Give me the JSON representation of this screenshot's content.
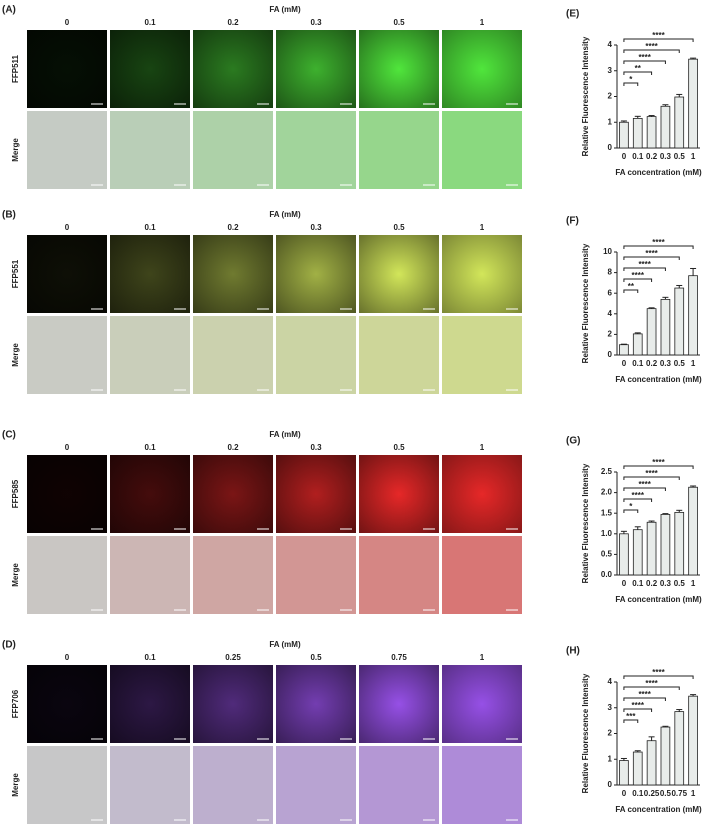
{
  "panels": [
    {
      "label": "(A)",
      "header": "FA (mM)",
      "concentrations": [
        "0",
        "0.1",
        "0.2",
        "0.3",
        "0.5",
        "1"
      ],
      "rows": [
        "FFP511",
        "Merge"
      ]
    },
    {
      "label": "(B)",
      "header": "FA (mM)",
      "concentrations": [
        "0",
        "0.1",
        "0.2",
        "0.3",
        "0.5",
        "1"
      ],
      "rows": [
        "FFP551",
        "Merge"
      ]
    },
    {
      "label": "(C)",
      "header": "FA (mM)",
      "concentrations": [
        "0",
        "0.1",
        "0.2",
        "0.3",
        "0.5",
        "1"
      ],
      "rows": [
        "FFP585",
        "Merge"
      ]
    },
    {
      "label": "(D)",
      "header": "FA (mM)",
      "concentrations": [
        "0",
        "0.1",
        "0.25",
        "0.5",
        "0.75",
        "1"
      ],
      "rows": [
        "FFP706",
        "Merge"
      ]
    }
  ],
  "chart_data": [
    {
      "type": "bar",
      "label": "(E)",
      "ylabel": "Relative Fluorescence Intensity",
      "xlabel": "FA concentration (mM)",
      "categories": [
        "0",
        "0.1",
        "0.2",
        "0.3",
        "0.5",
        "1"
      ],
      "values": [
        1.0,
        1.15,
        1.22,
        1.62,
        1.98,
        3.45
      ],
      "errors": [
        0.05,
        0.08,
        0.04,
        0.06,
        0.1,
        0.04
      ],
      "significance": [
        null,
        "*",
        "**",
        "****",
        "****",
        "****"
      ],
      "ylim": [
        0,
        4
      ],
      "yticks": [
        0,
        1,
        2,
        3,
        4
      ],
      "color": "#e8ecea"
    },
    {
      "type": "bar",
      "label": "(F)",
      "ylabel": "Relative Fluorescence Intensity",
      "xlabel": "FA concentration (mM)",
      "categories": [
        "0",
        "0.1",
        "0.2",
        "0.3",
        "0.5",
        "1"
      ],
      "values": [
        1.0,
        2.05,
        4.5,
        5.4,
        6.5,
        7.7
      ],
      "errors": [
        0.05,
        0.1,
        0.08,
        0.2,
        0.25,
        0.7
      ],
      "significance": [
        null,
        "**",
        "****",
        "****",
        "****",
        "****"
      ],
      "ylim": [
        0,
        10
      ],
      "yticks": [
        0,
        2,
        4,
        6,
        8,
        10
      ],
      "color": "#e8ecea"
    },
    {
      "type": "bar",
      "label": "(G)",
      "ylabel": "Relative Fluorescence Intensity",
      "xlabel": "FA concentration (mM)",
      "categories": [
        "0",
        "0.1",
        "0.2",
        "0.3",
        "0.5",
        "1"
      ],
      "values": [
        1.0,
        1.1,
        1.28,
        1.47,
        1.52,
        2.13
      ],
      "errors": [
        0.06,
        0.07,
        0.03,
        0.02,
        0.05,
        0.03
      ],
      "significance": [
        null,
        "*",
        "****",
        "****",
        "****",
        "****"
      ],
      "ylim": [
        0,
        2.5
      ],
      "yticks": [
        {
          "value": 0,
          "label": "0.0"
        },
        0.5,
        {
          "value": 1,
          "label": "1.0"
        },
        1.5,
        {
          "value": 2,
          "label": "2.0"
        },
        2.5
      ],
      "color": "#e8ecea"
    },
    {
      "type": "bar",
      "label": "(H)",
      "ylabel": "Relative Fluorescence Intensity",
      "xlabel": "FA concentration (mM)",
      "categories": [
        "0",
        "0.1",
        "0.25",
        "0.5",
        "0.75",
        "1"
      ],
      "values": [
        0.95,
        1.28,
        1.72,
        2.25,
        2.85,
        3.45
      ],
      "errors": [
        0.08,
        0.05,
        0.15,
        0.03,
        0.08,
        0.06
      ],
      "significance": [
        null,
        "***",
        "****",
        "****",
        "****",
        "****"
      ],
      "ylim": [
        0,
        4
      ],
      "yticks": [
        0,
        1,
        2,
        3,
        4
      ],
      "color": "#e8ecea"
    }
  ]
}
